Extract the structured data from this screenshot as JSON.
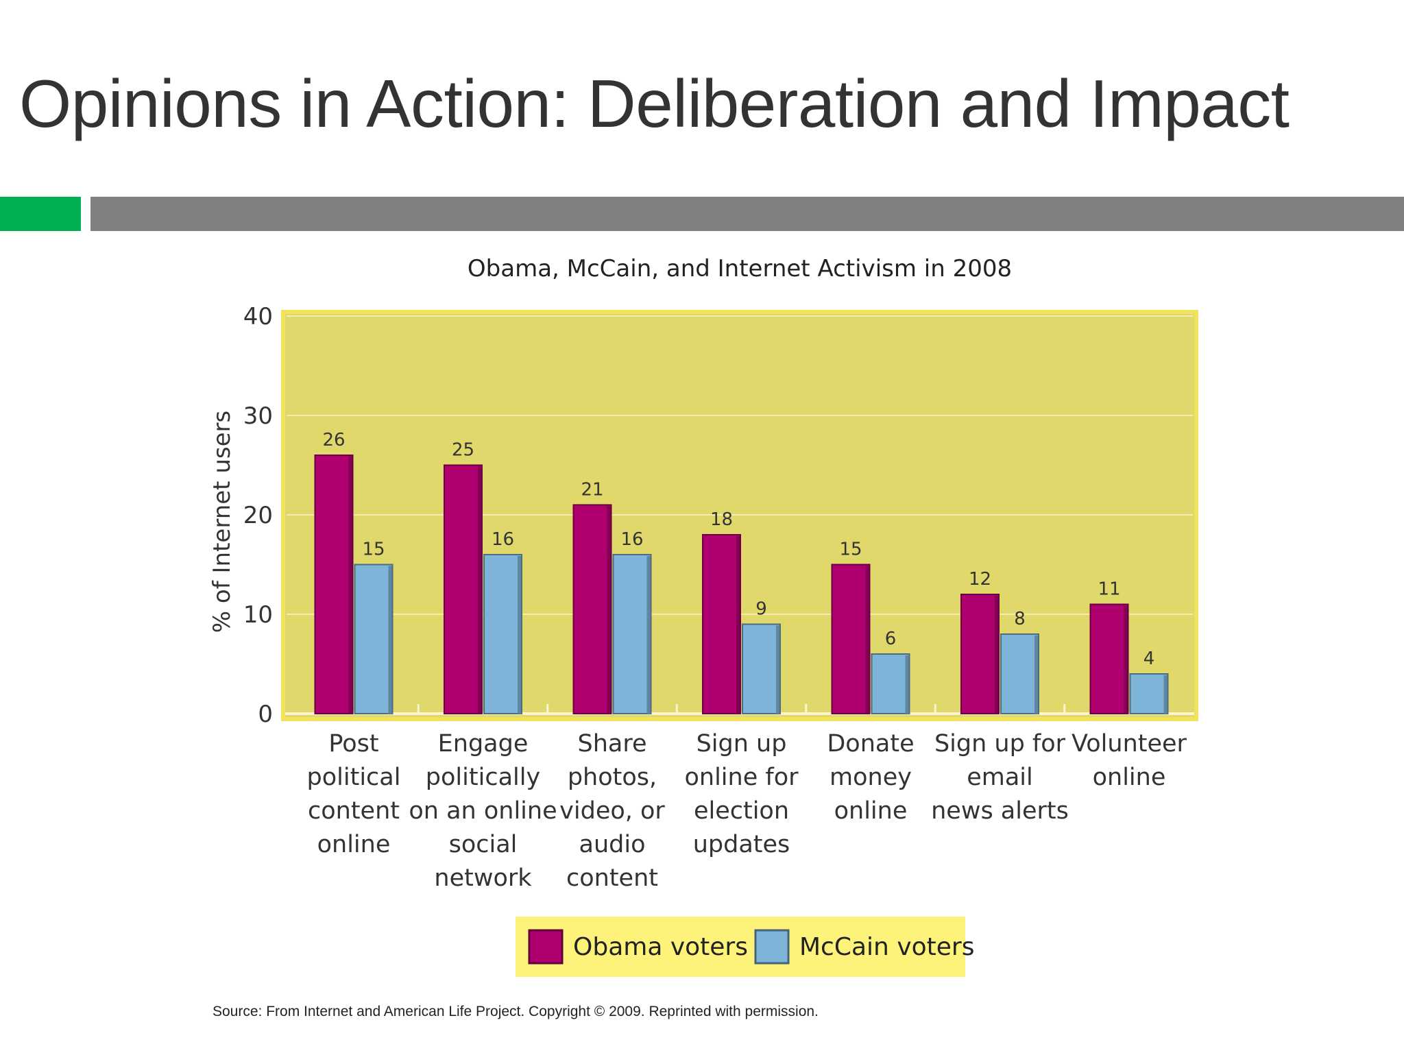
{
  "slide": {
    "title": "Opinions in Action:  Deliberation and Impact",
    "accent_color": "#00b050",
    "rule_color": "#808080",
    "source": "Source: From Internet and American Life Project. Copyright © 2009. Reprinted with permission."
  },
  "chart_data": {
    "type": "bar",
    "title": "Obama, McCain, and Internet Activism in 2008",
    "xlabel": "",
    "ylabel": "% of Internet users",
    "ylim": [
      0,
      40
    ],
    "yticks": [
      0,
      10,
      20,
      30,
      40
    ],
    "grid": true,
    "legend_position": "bottom",
    "plot_background": "#e0d86a",
    "categories": [
      [
        "Post",
        "political",
        "content",
        "online"
      ],
      [
        "Engage",
        "politically",
        "on an online",
        "social",
        "network"
      ],
      [
        "Share",
        "photos,",
        "video, or",
        "audio",
        "content"
      ],
      [
        "Sign up",
        "online for",
        "election",
        "updates"
      ],
      [
        "Donate",
        "money",
        "online"
      ],
      [
        "Sign up for",
        "email",
        "news alerts"
      ],
      [
        "Volunteer",
        "online"
      ]
    ],
    "series": [
      {
        "name": "Obama voters",
        "color": "#b0006f",
        "values": [
          26,
          25,
          21,
          18,
          15,
          12,
          11
        ]
      },
      {
        "name": "McCain voters",
        "color": "#7eb4d8",
        "values": [
          15,
          16,
          16,
          9,
          6,
          8,
          4
        ]
      }
    ]
  }
}
